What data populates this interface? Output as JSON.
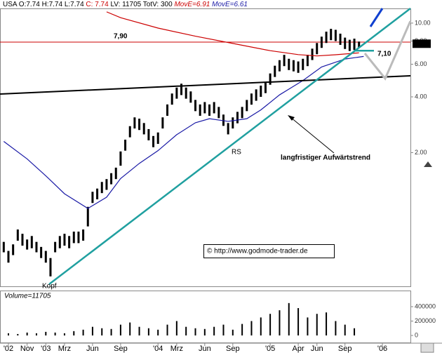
{
  "chart_data": [
    {
      "type": "ohlc",
      "header": [
        {
          "text": "USA O:7.74 H:7.74 L:7.74",
          "color": "#000000"
        },
        {
          "text": "C: 7.74",
          "color": "#cc0000"
        },
        {
          "text": "LV: 11705 TotV: 300",
          "color": "#000000"
        }
      ],
      "x": [
        -4.5,
        -4,
        -3.5,
        -3,
        -2.5,
        -2,
        -1.5,
        -1,
        -0.5,
        0,
        0.5,
        1,
        1.5,
        2,
        2.5,
        3,
        3.5,
        4,
        4.5,
        5,
        5.5,
        6,
        6.5,
        7,
        7.5,
        8,
        8.5,
        9,
        9.5,
        10,
        10.5,
        11,
        11.5,
        12,
        12.5,
        13,
        13.5,
        14,
        14.5,
        15,
        15.5,
        16,
        16.5,
        17,
        17.5,
        18,
        18.5,
        19,
        19.5,
        20,
        20.5,
        21,
        21.5,
        22,
        22.5,
        23,
        23.5,
        24,
        24.5,
        25,
        25.5,
        26,
        26.5,
        27,
        27.5,
        28,
        28.5,
        29,
        29.5,
        30,
        30.5,
        31,
        31.5,
        32,
        32.5,
        33,
        33.5
      ],
      "low": [
        0.58,
        0.51,
        0.56,
        0.67,
        0.63,
        0.6,
        0.61,
        0.58,
        0.54,
        0.51,
        0.43,
        0.58,
        0.61,
        0.63,
        0.61,
        0.65,
        0.65,
        0.67,
        0.8,
        1.07,
        1.12,
        1.21,
        1.26,
        1.35,
        1.44,
        1.7,
        2.05,
        2.42,
        2.7,
        2.65,
        2.51,
        2.33,
        2.14,
        2.23,
        2.7,
        3.16,
        3.63,
        3.91,
        4.09,
        3.91,
        3.72,
        3.35,
        3.16,
        3.26,
        3.16,
        3.26,
        3.07,
        2.79,
        2.51,
        2.7,
        2.88,
        3.07,
        3.35,
        3.63,
        3.81,
        4.0,
        4.19,
        4.65,
        5.12,
        5.49,
        5.86,
        5.58,
        5.49,
        5.39,
        5.58,
        5.86,
        6.32,
        6.79,
        7.35,
        7.81,
        8.09,
        8.0,
        7.63,
        7.25,
        7.07,
        7.16,
        7.4
      ],
      "high": [
        0.66,
        0.59,
        0.64,
        0.77,
        0.73,
        0.68,
        0.71,
        0.66,
        0.62,
        0.59,
        0.54,
        0.66,
        0.71,
        0.73,
        0.71,
        0.75,
        0.75,
        0.77,
        1.02,
        1.23,
        1.28,
        1.39,
        1.44,
        1.55,
        1.66,
        2.03,
        2.35,
        2.78,
        3.1,
        3.05,
        2.89,
        2.68,
        2.46,
        2.57,
        3.1,
        3.64,
        4.17,
        4.49,
        4.71,
        4.49,
        4.28,
        3.85,
        3.64,
        3.75,
        3.64,
        3.75,
        3.53,
        3.21,
        2.89,
        3.1,
        3.32,
        3.53,
        3.85,
        4.17,
        4.39,
        4.6,
        4.82,
        5.35,
        5.89,
        6.31,
        6.74,
        6.42,
        6.31,
        6.21,
        6.42,
        6.74,
        7.28,
        7.81,
        8.45,
        8.99,
        9.31,
        9.2,
        8.77,
        8.35,
        8.13,
        8.24,
        7.95
      ],
      "bar_color": "#000000",
      "series": [
        {
          "name": "MovE=6.91",
          "color": "#cc0000",
          "x": [
            6.5,
            8,
            12,
            16,
            20,
            24,
            27,
            29,
            31,
            33.5
          ],
          "values": [
            11.5,
            10.7,
            9.4,
            8.5,
            7.77,
            7.1,
            6.76,
            6.65,
            6.75,
            6.91
          ]
        },
        {
          "name": "MovE=6.61",
          "color": "#1a1aa6",
          "x": [
            -4.5,
            -2,
            0,
            2,
            4.5,
            6.5,
            8,
            10,
            12,
            14,
            16,
            17.5,
            19.5,
            21.5,
            23,
            25,
            27.5,
            29.5,
            32,
            34
          ],
          "values": [
            2.3,
            1.85,
            1.5,
            1.2,
            1.0,
            1.15,
            1.45,
            1.75,
            2.05,
            2.5,
            2.9,
            3.05,
            2.95,
            3.05,
            3.4,
            4.1,
            4.9,
            5.8,
            6.4,
            6.61
          ]
        }
      ],
      "levels": [
        {
          "value": 7.9,
          "label": "7,90",
          "color": "#cc0000"
        },
        {
          "value": 7.1,
          "label": "7,10",
          "color": "#20a0a0"
        }
      ],
      "last_price": 7.74,
      "annotations": [
        "RS",
        "Kopf",
        "langfristiger Aufwärtstrend",
        "© http://www.godmode-trader.de"
      ],
      "log_scale": true,
      "ylim": [
        0.38,
        12
      ],
      "yticks": [
        {
          "value": 10,
          "label": "10.00"
        },
        {
          "value": 8,
          "label": "8.00"
        },
        {
          "value": 6,
          "label": "6.00"
        },
        {
          "value": 4,
          "label": "4.00"
        },
        {
          "value": 2,
          "label": "2.00"
        }
      ],
      "xlim": [
        -4.9,
        39
      ],
      "xticks": [
        {
          "value": -4,
          "label": "'02"
        },
        {
          "value": -2,
          "label": "Nov"
        },
        {
          "value": 0,
          "label": "'03"
        },
        {
          "value": 2,
          "label": "Mrz"
        },
        {
          "value": 5,
          "label": "Jun"
        },
        {
          "value": 8,
          "label": "Sep"
        },
        {
          "value": 12,
          "label": "'04"
        },
        {
          "value": 14,
          "label": "Mrz"
        },
        {
          "value": 17,
          "label": "Jun"
        },
        {
          "value": 20,
          "label": "Sep"
        },
        {
          "value": 24,
          "label": "'05"
        },
        {
          "value": 27,
          "label": "Apr"
        },
        {
          "value": 29,
          "label": "Jun"
        },
        {
          "value": 32,
          "label": "Sep"
        },
        {
          "value": 36,
          "label": "'06"
        }
      ]
    },
    {
      "type": "bar",
      "label": "Volume=11705",
      "x": [
        -4,
        -3,
        -2,
        -1,
        0,
        1,
        2,
        3,
        4,
        5,
        6,
        7,
        8,
        9,
        10,
        11,
        12,
        13,
        14,
        15,
        16,
        17,
        18,
        19,
        20,
        21,
        22,
        23,
        24,
        25,
        26,
        27,
        28,
        29,
        30,
        31,
        32,
        33
      ],
      "values": [
        30000,
        20000,
        40000,
        30000,
        50000,
        40000,
        30000,
        60000,
        80000,
        120000,
        100000,
        90000,
        150000,
        180000,
        120000,
        100000,
        80000,
        150000,
        200000,
        120000,
        100000,
        90000,
        120000,
        150000,
        80000,
        160000,
        200000,
        250000,
        300000,
        350000,
        450000,
        380000,
        250000,
        300000,
        320000,
        200000,
        150000,
        100000
      ],
      "color": "#000000",
      "ylim": [
        0,
        585000
      ],
      "yticks": [
        400000,
        200000,
        0
      ]
    }
  ]
}
